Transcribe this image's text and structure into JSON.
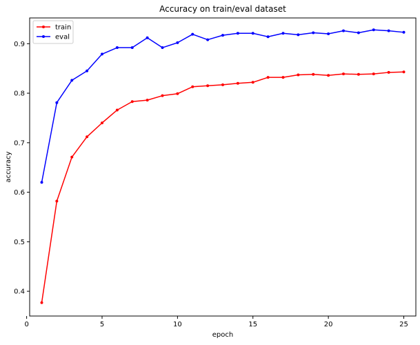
{
  "chart_data": {
    "type": "line",
    "title": "Accuracy on train/eval dataset",
    "xlabel": "epoch",
    "ylabel": "accuracy",
    "xlim": [
      0.2,
      25.8
    ],
    "ylim": [
      0.35,
      0.952
    ],
    "xticks": [
      0,
      5,
      10,
      15,
      20,
      25
    ],
    "yticks": [
      0.4,
      0.5,
      0.6,
      0.7,
      0.8,
      0.9
    ],
    "grid": false,
    "legend_position": "upper left",
    "x": [
      1,
      2,
      3,
      4,
      5,
      6,
      7,
      8,
      9,
      10,
      11,
      12,
      13,
      14,
      15,
      16,
      17,
      18,
      19,
      20,
      21,
      22,
      23,
      24,
      25
    ],
    "series": [
      {
        "name": "train",
        "color": "#ff0000",
        "marker": "point",
        "values": [
          0.377,
          0.582,
          0.671,
          0.712,
          0.74,
          0.766,
          0.783,
          0.786,
          0.795,
          0.799,
          0.813,
          0.815,
          0.817,
          0.82,
          0.822,
          0.832,
          0.832,
          0.837,
          0.838,
          0.836,
          0.839,
          0.838,
          0.839,
          0.842,
          0.843
        ]
      },
      {
        "name": "eval",
        "color": "#0000ff",
        "marker": "point",
        "values": [
          0.62,
          0.781,
          0.826,
          0.845,
          0.879,
          0.892,
          0.892,
          0.912,
          0.892,
          0.902,
          0.919,
          0.908,
          0.917,
          0.921,
          0.921,
          0.914,
          0.921,
          0.918,
          0.922,
          0.92,
          0.926,
          0.922,
          0.928,
          0.926,
          0.923
        ]
      }
    ]
  }
}
